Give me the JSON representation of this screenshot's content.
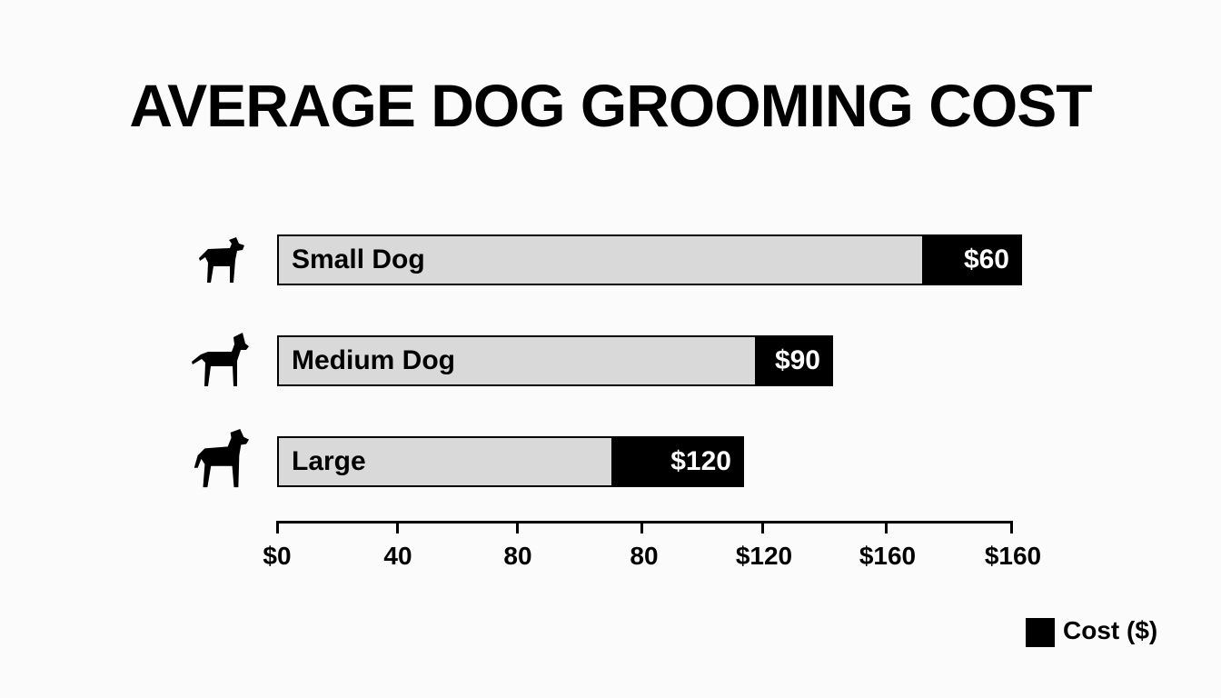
{
  "chart_data": {
    "type": "bar",
    "orientation": "horizontal",
    "title": "AVERAGE DOG GROOMING COST",
    "categories": [
      "Small Dog",
      "Medium Dog",
      "Large"
    ],
    "values": [
      60,
      90,
      120
    ],
    "value_labels": [
      "$60",
      "$90",
      "$120"
    ],
    "x_tick_labels": [
      "$0",
      "40",
      "80",
      "80",
      "$120",
      "$160",
      "$160"
    ],
    "legend": {
      "entries": [
        "Cost ($)"
      ],
      "placement": "bottom-right"
    },
    "icons": [
      "small-dog-icon",
      "medium-dog-icon",
      "large-dog-icon"
    ],
    "colors": {
      "bar_base": "#d9d9d9",
      "bar_value": "#000000"
    },
    "grid": false
  }
}
